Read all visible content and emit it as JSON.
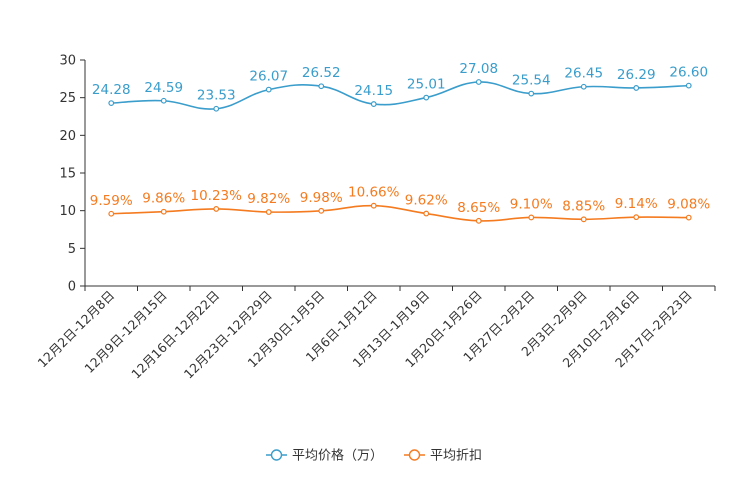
{
  "chart_data": {
    "type": "line",
    "title": "",
    "xlabel": "",
    "ylabel": "",
    "ylim": [
      0,
      30
    ],
    "yticks": [
      0,
      5,
      10,
      15,
      20,
      25,
      30
    ],
    "grid": false,
    "legend_position": "bottom-center",
    "categories": [
      "12月2日-12月8日",
      "12月9日-12月15日",
      "12月16日-12月22日",
      "12月23日-12月29日",
      "12月30日-1月5日",
      "1月6日-1月12日",
      "1月13日-1月19日",
      "1月20日-1月26日",
      "1月27日-2月2日",
      "2月3日-2月9日",
      "2月10日-2月16日",
      "2月17日-2月23日"
    ],
    "series": [
      {
        "name": "平均价格（万）",
        "color": "#3a9dcb",
        "values": [
          24.28,
          24.59,
          23.53,
          26.07,
          26.52,
          24.15,
          25.01,
          27.08,
          25.54,
          26.45,
          26.29,
          26.6
        ],
        "labels": [
          "24.28",
          "24.59",
          "23.53",
          "26.07",
          "26.52",
          "24.15",
          "25.01",
          "27.08",
          "25.54",
          "26.45",
          "26.29",
          "26.60"
        ]
      },
      {
        "name": "平均折扣",
        "color": "#f47b20",
        "values": [
          9.59,
          9.86,
          10.23,
          9.82,
          9.98,
          10.66,
          9.62,
          8.65,
          9.1,
          8.85,
          9.14,
          9.08
        ],
        "labels": [
          "9.59%",
          "9.86%",
          "10.23%",
          "9.82%",
          "9.98%",
          "10.66%",
          "9.62%",
          "8.65%",
          "9.10%",
          "8.85%",
          "9.14%",
          "9.08%"
        ]
      }
    ]
  }
}
